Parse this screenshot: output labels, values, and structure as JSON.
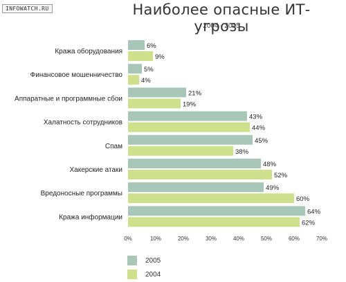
{
  "watermark": "INFOWATCH.RU",
  "chart_data": {
    "type": "bar",
    "orientation": "horizontal",
    "title": "Наиболее опасные ИТ-угрозы",
    "subtitle": "2004 - 2005",
    "categories": [
      "Кража оборудования",
      "Финансовое мошенничество",
      "Аппаратные и программные сбои",
      "Халатность сотрудников",
      "Спам",
      "Хакерские атаки",
      "Вредоносные программы",
      "Кража информации"
    ],
    "series": [
      {
        "name": "2005",
        "color": "#a9c7b9",
        "values": [
          6,
          5,
          21,
          43,
          45,
          48,
          49,
          64
        ]
      },
      {
        "name": "2004",
        "color": "#cfe08c",
        "values": [
          9,
          4,
          19,
          44,
          38,
          52,
          60,
          62
        ]
      }
    ],
    "value_suffix": "%",
    "xlim": [
      0,
      70
    ],
    "xticks": [
      "0%",
      "10%",
      "20%",
      "30%",
      "40%",
      "50%",
      "60%",
      "70%"
    ],
    "grid": false,
    "legend_position": "bottom-left"
  }
}
